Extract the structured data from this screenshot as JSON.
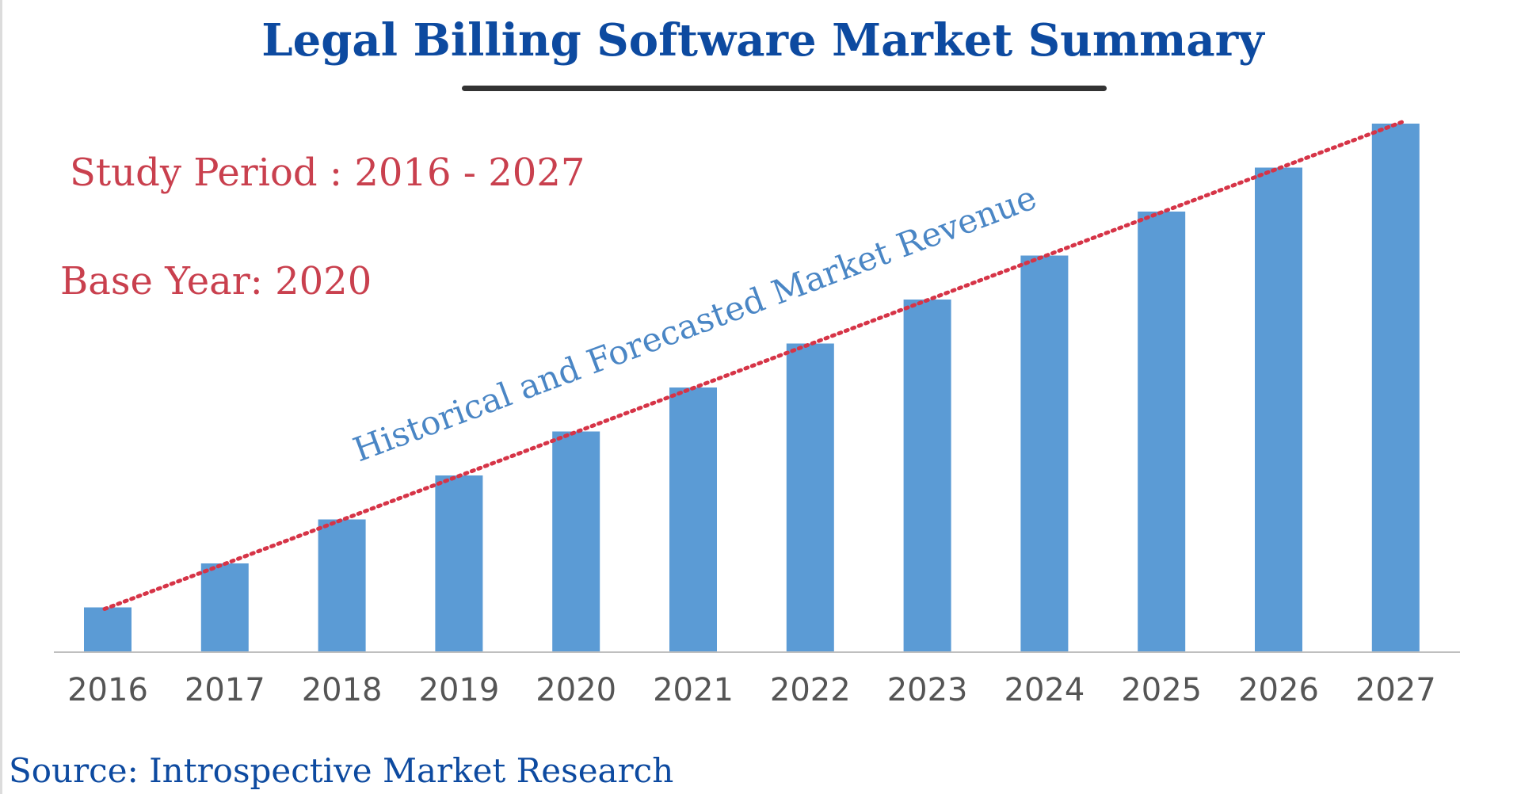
{
  "header": {
    "title": "Legal Billing Software Market Summary"
  },
  "info": {
    "study_period": "Study Period : 2016 - 2027",
    "base_year": "Base Year: 2020"
  },
  "footer": {
    "source": "Source: Introspective Market Research"
  },
  "colors": {
    "bar": "#5b9bd5",
    "title": "#0d4aa0",
    "info_text": "#c9404e",
    "trend_line": "#d63447",
    "annotation": "#4a86c5",
    "axis": "#bfbfbf",
    "tick_text": "#555555"
  },
  "chart_data": {
    "type": "bar",
    "title": "Legal Billing Software Market Summary",
    "categories": [
      "2016",
      "2017",
      "2018",
      "2019",
      "2020",
      "2021",
      "2022",
      "2023",
      "2024",
      "2025",
      "2026",
      "2027"
    ],
    "values": [
      1,
      2,
      3,
      4,
      5,
      6,
      7,
      8,
      9,
      10,
      11,
      12
    ],
    "ylim": [
      0,
      12
    ],
    "xlabel": "",
    "ylabel": "",
    "grid": false,
    "legend": "none",
    "annotation": "Historical and Forecasted Market Revenue",
    "trend_line": "dotted"
  }
}
